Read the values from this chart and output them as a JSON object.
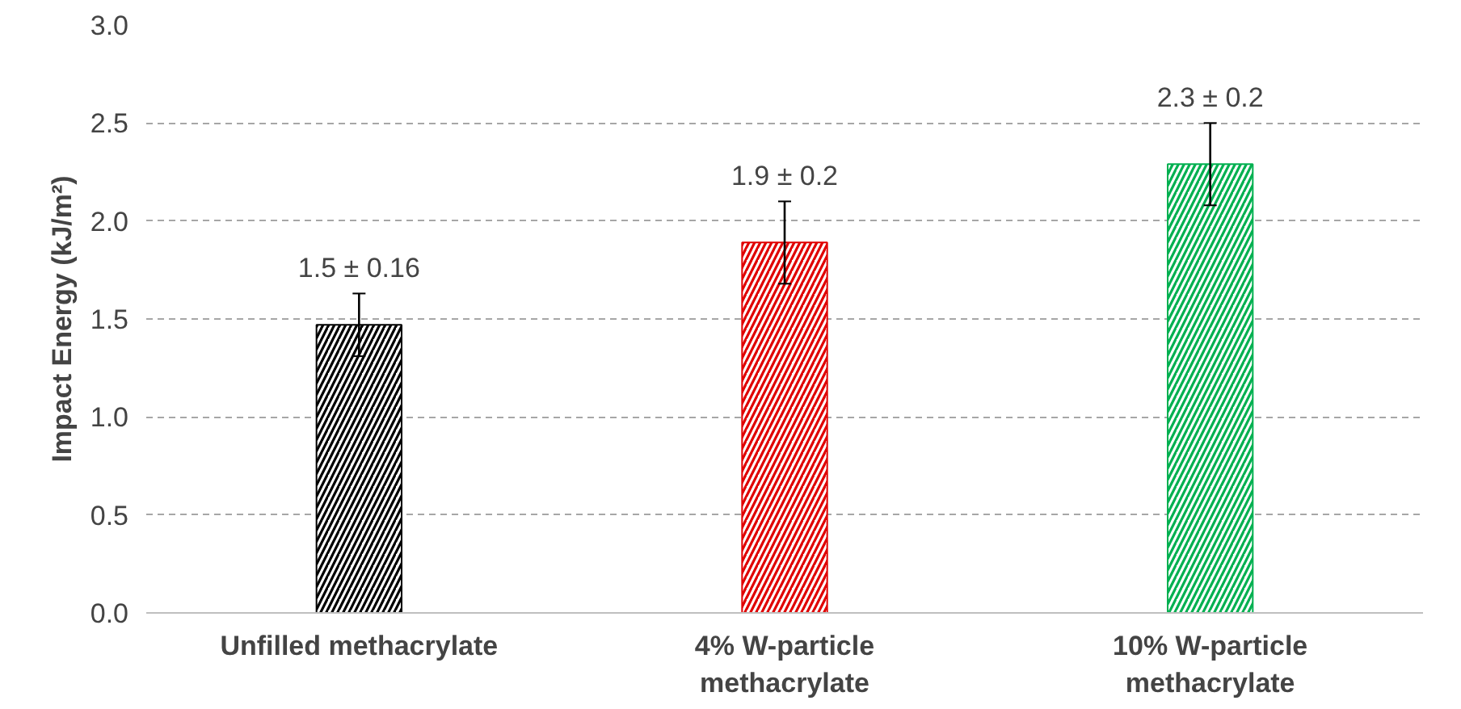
{
  "chart_data": {
    "type": "bar",
    "ylabel": "Impact Energy (kJ/m²)",
    "categories": [
      "Unfilled methacrylate",
      "4% W-particle\nmethacrylate",
      "10% W-particle\nmethacrylate"
    ],
    "values": [
      1.47,
      1.89,
      2.29
    ],
    "colors": [
      "#000000",
      "#e00000",
      "#00b050"
    ],
    "errors": [
      0.16,
      0.21,
      0.21
    ],
    "value_labels": [
      "1.5 ± 0.16",
      "1.9 ± 0.2",
      "2.3 ± 0.2"
    ],
    "ylim": [
      0,
      3
    ],
    "yticks": [
      {
        "value": 0,
        "label": "0.0"
      },
      {
        "value": 0.5,
        "label": "0.5"
      },
      {
        "value": 1,
        "label": "1.0"
      },
      {
        "value": 1.5,
        "label": "1.5"
      },
      {
        "value": 2,
        "label": "2.0"
      },
      {
        "value": 2.5,
        "label": "2.5"
      },
      {
        "value": 3,
        "label": "3.0"
      }
    ],
    "grid": "y"
  }
}
